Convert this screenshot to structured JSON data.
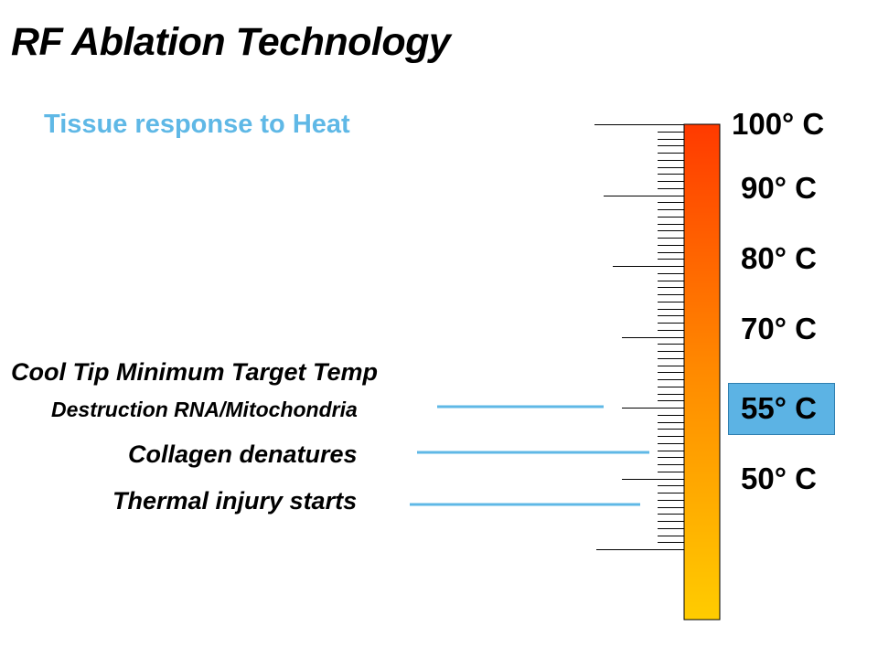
{
  "slide": {
    "title": "RF Ablation Technology",
    "subtitle": "Tissue response to Heat",
    "labels": {
      "cool_tip": "Cool Tip Minimum Target Temp",
      "destruction": "Destruction RNA/Mitochondria",
      "collagen": "Collagen denatures",
      "thermal": "Thermal injury starts"
    },
    "temperatures": {
      "t100": "100° C",
      "t90": "90° C",
      "t80": "80° C",
      "t70": "70° C",
      "t55": "55° C",
      "t50": "50° C"
    }
  },
  "colors": {
    "accent_blue": "#5fb8e6",
    "highlight_box": "#5cb3e4",
    "thermo_top": "#ff3a00",
    "thermo_bottom": "#ffcc00"
  }
}
